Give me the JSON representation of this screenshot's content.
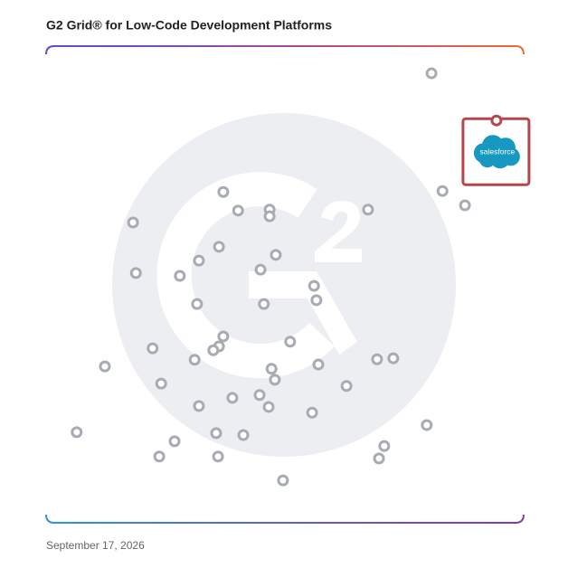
{
  "chart_data": {
    "type": "scatter",
    "title": "G2 Grid® for Low-Code Development Platforms",
    "date": "September 17, 2026",
    "xlim": [
      0,
      100
    ],
    "ylim": [
      0,
      100
    ],
    "color": "#a7abb3",
    "x": [
      80.7,
      83.0,
      87.7,
      67.4,
      37.1,
      40.2,
      46.8,
      46.8,
      18.2,
      36.2,
      32.0,
      48.1,
      44.9,
      18.8,
      28.0,
      56.1,
      56.6,
      31.6,
      45.6,
      37.1,
      51.1,
      22.3,
      36.2,
      35.0,
      31.1,
      57.0,
      69.3,
      72.7,
      12.3,
      47.2,
      47.9,
      24.1,
      62.9,
      44.7,
      39.0,
      32.0,
      46.6,
      55.7,
      79.7,
      6.4,
      26.9,
      35.6,
      41.3,
      70.8,
      23.7,
      36.0,
      69.7,
      49.6
    ],
    "values": [
      94.3,
      69.6,
      66.6,
      65.7,
      69.4,
      65.5,
      65.7,
      64.3,
      63.0,
      57.9,
      55.0,
      56.2,
      53.1,
      52.4,
      51.8,
      49.7,
      46.7,
      45.9,
      45.9,
      39.1,
      38.0,
      36.6,
      37.0,
      36.2,
      34.2,
      33.2,
      34.3,
      34.5,
      32.8,
      32.3,
      30.0,
      29.2,
      28.7,
      26.8,
      26.2,
      24.5,
      24.3,
      23.1,
      20.5,
      19.0,
      17.1,
      18.8,
      18.4,
      16.1,
      13.9,
      13.9,
      13.5,
      8.9
    ],
    "highlight": {
      "label": "salesforce",
      "x": 94.3,
      "y": 84.4,
      "color": "#b5474b"
    }
  }
}
